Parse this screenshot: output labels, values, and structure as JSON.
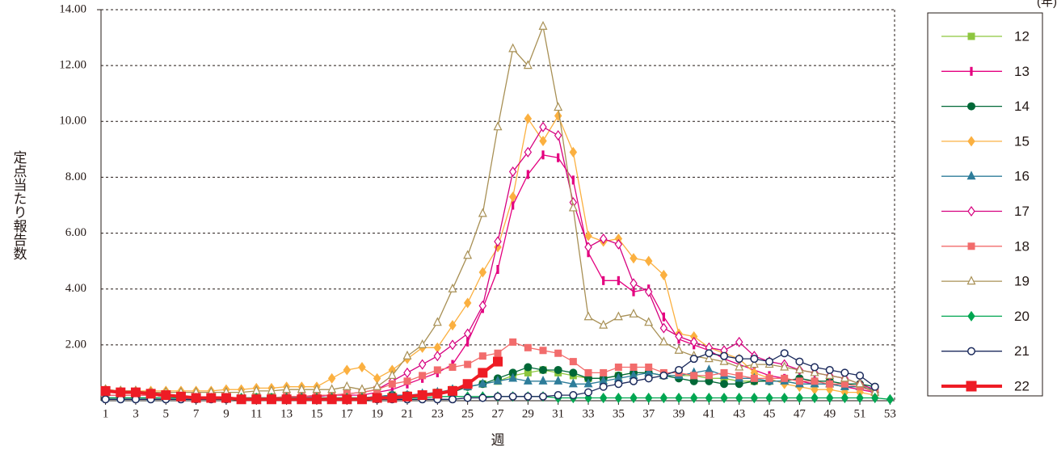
{
  "chart_data": {
    "type": "line",
    "y_label": "定点当たり報告数",
    "x_label": "週",
    "legend_title": "(年)",
    "xlim": [
      0.7,
      53.3
    ],
    "xticks": [
      1,
      3,
      5,
      7,
      9,
      11,
      13,
      15,
      17,
      19,
      21,
      23,
      25,
      27,
      29,
      31,
      33,
      35,
      37,
      39,
      41,
      43,
      45,
      47,
      49,
      51,
      53
    ],
    "ylim": [
      0,
      14
    ],
    "yticks": [
      {
        "value": 2,
        "label": "2.00"
      },
      {
        "value": 4,
        "label": "4.00"
      },
      {
        "value": 6,
        "label": "6.00"
      },
      {
        "value": 8,
        "label": "8.00"
      },
      {
        "value": 10,
        "label": "10.00"
      },
      {
        "value": 12,
        "label": "12.00"
      },
      {
        "value": 14,
        "label": "14.00"
      }
    ],
    "grid": true,
    "legend": "right",
    "x": [
      1,
      2,
      3,
      4,
      5,
      6,
      7,
      8,
      9,
      10,
      11,
      12,
      13,
      14,
      15,
      16,
      17,
      18,
      19,
      20,
      21,
      22,
      23,
      24,
      25,
      26,
      27,
      28,
      29,
      30,
      31,
      32,
      33,
      34,
      35,
      36,
      37,
      38,
      39,
      40,
      41,
      42,
      43,
      44,
      45,
      46,
      47,
      48,
      49,
      50,
      51,
      52,
      53
    ],
    "series": [
      {
        "name": "12",
        "color": "#8dc63f",
        "marker": "square",
        "linewidth": 1.3,
        "values": [
          0.2,
          0.2,
          0.2,
          0.2,
          0.15,
          0.15,
          0.1,
          0.1,
          0.1,
          0.1,
          0.1,
          0.1,
          0.1,
          0.1,
          0.1,
          0.1,
          0.1,
          0.1,
          0.15,
          0.2,
          0.2,
          0.2,
          0.3,
          0.4,
          0.5,
          0.6,
          0.7,
          0.9,
          1.0,
          1.1,
          1.0,
          0.9,
          0.8,
          0.8,
          0.9,
          1.0,
          1.0,
          0.9,
          0.9,
          0.9,
          0.8,
          0.8,
          0.7,
          0.7,
          0.7,
          0.7,
          0.6,
          0.6,
          0.6,
          0.5,
          0.5,
          0.4,
          null
        ]
      },
      {
        "name": "13",
        "color": "#e4007f",
        "marker": "bar",
        "linewidth": 1.3,
        "values": [
          0.2,
          0.2,
          0.2,
          0.2,
          0.15,
          0.15,
          0.1,
          0.1,
          0.1,
          0.1,
          0.1,
          0.1,
          0.1,
          0.15,
          0.15,
          0.2,
          0.2,
          0.2,
          0.3,
          0.4,
          0.6,
          0.8,
          1.0,
          1.3,
          2.1,
          3.3,
          4.7,
          7.0,
          8.1,
          8.8,
          8.7,
          7.9,
          5.3,
          4.3,
          4.3,
          3.9,
          4.0,
          3.0,
          2.2,
          2.0,
          1.8,
          1.5,
          1.3,
          1.1,
          0.9,
          0.8,
          0.7,
          0.6,
          0.6,
          0.5,
          0.4,
          0.3,
          null
        ]
      },
      {
        "name": "14",
        "color": "#006837",
        "marker": "circle",
        "linewidth": 1.3,
        "values": [
          0.1,
          0.1,
          0.1,
          0.1,
          0.1,
          0.1,
          0.1,
          0.1,
          0.1,
          0.1,
          0.1,
          0.1,
          0.1,
          0.1,
          0.1,
          0.1,
          0.1,
          0.1,
          0.15,
          0.2,
          0.2,
          0.2,
          0.25,
          0.3,
          0.5,
          0.6,
          0.8,
          1.0,
          1.2,
          1.1,
          1.1,
          1.0,
          0.8,
          0.8,
          0.9,
          1.0,
          1.0,
          0.9,
          0.8,
          0.7,
          0.7,
          0.6,
          0.6,
          0.7,
          0.7,
          0.7,
          0.8,
          0.7,
          0.7,
          0.6,
          0.6,
          0.5,
          null
        ]
      },
      {
        "name": "15",
        "color": "#fbb040",
        "marker": "diamond",
        "linewidth": 1.3,
        "values": [
          0.4,
          0.35,
          0.35,
          0.35,
          0.35,
          0.35,
          0.35,
          0.35,
          0.4,
          0.4,
          0.45,
          0.45,
          0.5,
          0.5,
          0.5,
          0.8,
          1.1,
          1.2,
          0.8,
          1.1,
          1.5,
          1.9,
          1.9,
          2.7,
          3.5,
          4.6,
          5.5,
          7.3,
          10.1,
          9.3,
          10.2,
          8.9,
          5.9,
          5.7,
          5.8,
          5.1,
          5.0,
          4.5,
          2.4,
          2.3,
          1.9,
          1.7,
          1.5,
          1.0,
          0.8,
          0.6,
          0.5,
          0.4,
          0.4,
          0.3,
          0.3,
          0.2,
          null
        ]
      },
      {
        "name": "16",
        "color": "#2e7d9a",
        "marker": "triangle",
        "linewidth": 1.3,
        "values": [
          0.1,
          0.1,
          0.1,
          0.1,
          0.1,
          0.1,
          0.1,
          0.1,
          0.1,
          0.1,
          0.1,
          0.1,
          0.1,
          0.1,
          0.1,
          0.1,
          0.1,
          0.1,
          0.15,
          0.2,
          0.2,
          0.25,
          0.3,
          0.4,
          0.5,
          0.6,
          0.7,
          0.8,
          0.7,
          0.7,
          0.7,
          0.6,
          0.6,
          0.7,
          0.8,
          0.9,
          1.0,
          0.9,
          0.9,
          1.0,
          1.1,
          0.9,
          0.8,
          0.8,
          0.7,
          0.7,
          0.6,
          0.6,
          0.6,
          0.5,
          0.5,
          0.4,
          null
        ]
      },
      {
        "name": "17",
        "color": "#d6007f",
        "marker": "diamond-open",
        "linewidth": 1.3,
        "values": [
          0.2,
          0.2,
          0.2,
          0.2,
          0.15,
          0.15,
          0.1,
          0.1,
          0.1,
          0.1,
          0.1,
          0.1,
          0.15,
          0.15,
          0.2,
          0.2,
          0.25,
          0.3,
          0.4,
          0.7,
          1.0,
          1.3,
          1.6,
          2.0,
          2.4,
          3.4,
          5.7,
          8.2,
          8.9,
          9.8,
          9.5,
          7.1,
          5.5,
          5.8,
          5.6,
          4.2,
          3.9,
          2.6,
          2.3,
          2.1,
          1.9,
          1.8,
          2.1,
          1.6,
          1.4,
          1.3,
          1.1,
          1.0,
          0.9,
          0.8,
          0.6,
          0.4,
          null
        ]
      },
      {
        "name": "18",
        "color": "#f26c6c",
        "marker": "square",
        "linewidth": 1.3,
        "values": [
          0.2,
          0.2,
          0.2,
          0.2,
          0.15,
          0.15,
          0.1,
          0.1,
          0.1,
          0.1,
          0.1,
          0.1,
          0.15,
          0.15,
          0.2,
          0.2,
          0.25,
          0.3,
          0.4,
          0.6,
          0.7,
          0.9,
          1.1,
          1.2,
          1.3,
          1.6,
          1.7,
          2.1,
          1.9,
          1.8,
          1.7,
          1.4,
          1.0,
          1.0,
          1.2,
          1.2,
          1.2,
          1.0,
          1.0,
          0.9,
          0.9,
          1.0,
          0.9,
          0.8,
          0.8,
          0.8,
          0.7,
          0.7,
          0.6,
          0.6,
          0.5,
          0.3,
          null
        ]
      },
      {
        "name": "19",
        "color": "#a89055",
        "marker": "triangle-open",
        "linewidth": 1.3,
        "values": [
          0.4,
          0.35,
          0.35,
          0.3,
          0.3,
          0.3,
          0.3,
          0.3,
          0.3,
          0.3,
          0.35,
          0.35,
          0.4,
          0.4,
          0.4,
          0.4,
          0.5,
          0.4,
          0.5,
          0.9,
          1.6,
          2.0,
          2.8,
          4.0,
          5.2,
          6.7,
          9.8,
          12.6,
          12.0,
          13.4,
          10.5,
          6.9,
          3.0,
          2.7,
          3.0,
          3.1,
          2.8,
          2.1,
          1.8,
          1.6,
          1.5,
          1.4,
          1.2,
          1.3,
          1.3,
          1.2,
          1.1,
          1.0,
          0.9,
          0.8,
          0.6,
          0.3,
          null
        ]
      },
      {
        "name": "20",
        "color": "#00a651",
        "marker": "diamond",
        "linewidth": 1.3,
        "values": [
          0.1,
          0.1,
          0.1,
          0.1,
          0.1,
          0.1,
          0.1,
          0.1,
          0.1,
          0.1,
          0.1,
          0.1,
          0.1,
          0.1,
          0.1,
          0.1,
          0.1,
          0.1,
          0.1,
          0.1,
          0.1,
          0.1,
          0.15,
          0.15,
          0.15,
          0.15,
          0.15,
          0.15,
          0.15,
          0.15,
          0.1,
          0.1,
          0.1,
          0.1,
          0.1,
          0.1,
          0.1,
          0.1,
          0.1,
          0.1,
          0.1,
          0.1,
          0.1,
          0.1,
          0.1,
          0.1,
          0.1,
          0.1,
          0.1,
          0.1,
          0.1,
          0.1,
          0.05
        ]
      },
      {
        "name": "21",
        "color": "#1b2a5c",
        "marker": "circle-open",
        "linewidth": 1.3,
        "values": [
          0.05,
          0.05,
          0.05,
          0.05,
          0.05,
          0.05,
          0.05,
          0.05,
          0.05,
          0.05,
          0.05,
          0.05,
          0.05,
          0.05,
          0.05,
          0.05,
          0.05,
          0.05,
          0.05,
          0.05,
          0.05,
          0.05,
          0.05,
          0.05,
          0.1,
          0.1,
          0.15,
          0.15,
          0.15,
          0.15,
          0.2,
          0.2,
          0.3,
          0.5,
          0.6,
          0.7,
          0.8,
          0.9,
          1.1,
          1.5,
          1.7,
          1.6,
          1.5,
          1.5,
          1.4,
          1.7,
          1.4,
          1.2,
          1.1,
          1.0,
          0.9,
          0.5,
          null
        ]
      },
      {
        "name": "22",
        "color": "#ee1c25",
        "marker": "square",
        "linewidth": 4,
        "values": [
          0.35,
          0.3,
          0.3,
          0.25,
          0.2,
          0.15,
          0.1,
          0.1,
          0.1,
          0.05,
          0.05,
          0.05,
          0.05,
          0.05,
          0.05,
          0.05,
          0.05,
          0.05,
          0.1,
          0.1,
          0.15,
          0.2,
          0.25,
          0.35,
          0.6,
          1.0,
          1.4,
          null,
          null,
          null,
          null,
          null,
          null,
          null,
          null,
          null,
          null,
          null,
          null,
          null,
          null,
          null,
          null,
          null,
          null,
          null,
          null,
          null,
          null,
          null,
          null,
          null,
          null
        ]
      }
    ]
  }
}
